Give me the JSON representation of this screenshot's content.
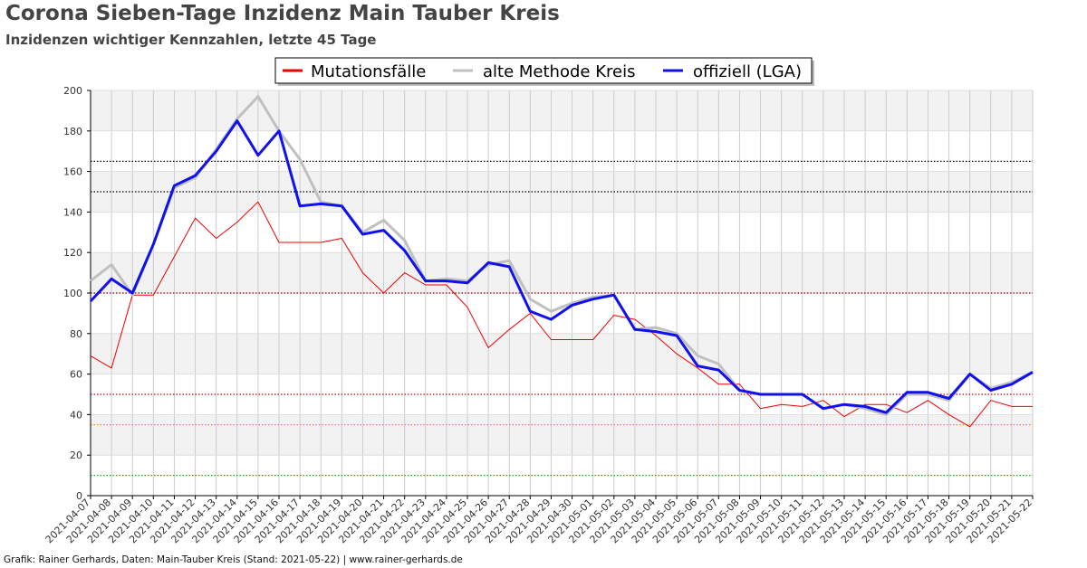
{
  "title": "Corona Sieben-Tage Inzidenz Main Tauber Kreis",
  "subtitle": "Inzidenzen wichtiger Kennzahlen, letzte 45 Tage",
  "footer": "Grafik: Rainer Gerhards, Daten: Main-Tauber Kreis (Stand: 2021-05-22) | www.rainer-gerhards.de",
  "chart_data": {
    "type": "line",
    "ylim": [
      0,
      200
    ],
    "yticks": [
      0,
      20,
      40,
      60,
      80,
      100,
      120,
      140,
      160,
      180,
      200
    ],
    "grid": true,
    "legend_position": "top",
    "x": [
      "2021-04-07",
      "2021-04-08",
      "2021-04-09",
      "2021-04-10",
      "2021-04-11",
      "2021-04-12",
      "2021-04-13",
      "2021-04-14",
      "2021-04-15",
      "2021-04-16",
      "2021-04-17",
      "2021-04-18",
      "2021-04-19",
      "2021-04-20",
      "2021-04-21",
      "2021-04-22",
      "2021-04-23",
      "2021-04-24",
      "2021-04-25",
      "2021-04-26",
      "2021-04-27",
      "2021-04-28",
      "2021-04-29",
      "2021-04-30",
      "2021-05-01",
      "2021-05-02",
      "2021-05-03",
      "2021-05-04",
      "2021-05-05",
      "2021-05-06",
      "2021-05-07",
      "2021-05-08",
      "2021-05-09",
      "2021-05-10",
      "2021-05-11",
      "2021-05-12",
      "2021-05-13",
      "2021-05-14",
      "2021-05-15",
      "2021-05-16",
      "2021-05-17",
      "2021-05-18",
      "2021-05-19",
      "2021-05-20",
      "2021-05-21",
      "2021-05-22"
    ],
    "series": [
      {
        "name": "Mutationsfälle",
        "color": "#ee0000",
        "width": 1,
        "values": [
          69,
          63,
          99,
          99,
          118,
          137,
          127,
          135,
          145,
          125,
          125,
          125,
          127,
          110,
          100,
          110,
          104,
          104,
          93,
          73,
          82,
          90,
          77,
          77,
          77,
          89,
          87,
          79,
          70,
          63,
          55,
          55,
          43,
          45,
          44,
          47,
          39,
          45,
          45,
          41,
          47,
          40,
          34,
          47,
          44,
          44
        ]
      },
      {
        "name": "alte Methode Kreis",
        "color": "#c0c0c0",
        "width": 3,
        "values": [
          106,
          114,
          99,
          124,
          152,
          157,
          171,
          186,
          197,
          180,
          166,
          145,
          143,
          130,
          136,
          126,
          106,
          107,
          106,
          114,
          116,
          97,
          91,
          95,
          98,
          99,
          82,
          83,
          80,
          69,
          65,
          52,
          50,
          50,
          50,
          43,
          45,
          43,
          40,
          50,
          50,
          47,
          60,
          53,
          56,
          61
        ]
      },
      {
        "name": "offiziell (LGA)",
        "color": "#1111ee",
        "width": 3,
        "values": [
          96,
          107,
          100,
          124,
          153,
          158,
          170,
          185,
          168,
          180,
          143,
          144,
          143,
          129,
          131,
          121,
          106,
          106,
          105,
          115,
          113,
          91,
          87,
          94,
          97,
          99,
          82,
          81,
          79,
          64,
          62,
          52,
          50,
          50,
          50,
          43,
          45,
          44,
          41,
          51,
          51,
          48,
          60,
          52,
          55,
          61
        ]
      }
    ],
    "reference_lines": [
      {
        "value": 165,
        "color": "#000000"
      },
      {
        "value": 150,
        "color": "#000000"
      },
      {
        "value": 100,
        "color": "#990000"
      },
      {
        "value": 50,
        "color": "#cc0000"
      },
      {
        "value": 35,
        "color": "#ff8c00"
      },
      {
        "value": 10,
        "color": "#00bb00"
      }
    ]
  }
}
